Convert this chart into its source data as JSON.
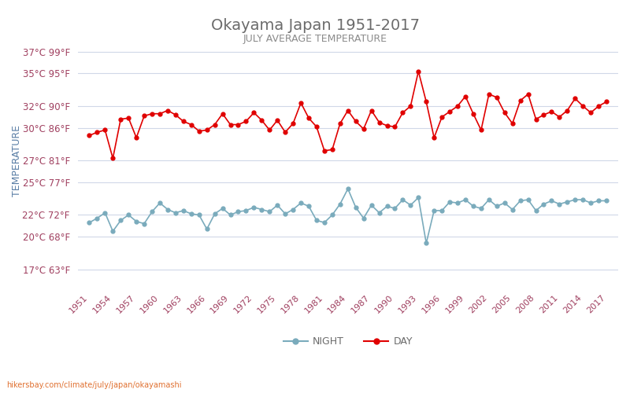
{
  "title": "Okayama Japan 1951-2017",
  "subtitle": "JULY AVERAGE TEMPERATURE",
  "ylabel": "TEMPERATURE",
  "footer": "hikersbay.com/climate/july/japan/okayamashi",
  "yticks_c": [
    17,
    20,
    22,
    25,
    27,
    30,
    32,
    35,
    37
  ],
  "yticks_f": [
    63,
    68,
    72,
    77,
    81,
    86,
    90,
    95,
    99
  ],
  "xticks": [
    1951,
    1954,
    1957,
    1960,
    1963,
    1966,
    1969,
    1972,
    1975,
    1978,
    1981,
    1984,
    1987,
    1990,
    1993,
    1996,
    1999,
    2002,
    2005,
    2008,
    2011,
    2014,
    2017
  ],
  "ylim": [
    15.5,
    38.5
  ],
  "day_color": "#e00000",
  "night_color": "#7aabbc",
  "title_color": "#6b6b6b",
  "subtitle_color": "#8b8b8b",
  "ylabel_color": "#5b7fa6",
  "tick_color": "#a04060",
  "grid_color": "#d0d8e8",
  "background_color": "#ffffff",
  "legend_night": "NIGHT",
  "legend_day": "DAY",
  "years": [
    1951,
    1952,
    1953,
    1954,
    1955,
    1956,
    1957,
    1958,
    1959,
    1960,
    1961,
    1962,
    1963,
    1964,
    1965,
    1966,
    1967,
    1968,
    1969,
    1970,
    1971,
    1972,
    1973,
    1974,
    1975,
    1976,
    1977,
    1978,
    1979,
    1980,
    1981,
    1982,
    1983,
    1984,
    1985,
    1986,
    1987,
    1988,
    1989,
    1990,
    1991,
    1992,
    1993,
    1994,
    1995,
    1996,
    1997,
    1998,
    1999,
    2000,
    2001,
    2002,
    2003,
    2004,
    2005,
    2006,
    2007,
    2008,
    2009,
    2010,
    2011,
    2012,
    2013,
    2014,
    2015,
    2016,
    2017
  ],
  "day_temps": [
    29.3,
    29.6,
    29.8,
    27.2,
    30.8,
    30.9,
    29.1,
    31.1,
    31.3,
    31.3,
    31.6,
    31.2,
    30.6,
    30.3,
    29.7,
    29.8,
    30.3,
    31.3,
    30.3,
    30.3,
    30.6,
    31.4,
    30.7,
    29.8,
    30.7,
    29.6,
    30.4,
    32.3,
    30.9,
    30.1,
    27.9,
    28.0,
    30.4,
    31.6,
    30.6,
    29.9,
    31.6,
    30.5,
    30.2,
    30.1,
    31.4,
    32.0,
    35.2,
    32.4,
    29.1,
    31.0,
    31.5,
    32.0,
    32.9,
    31.3,
    29.8,
    33.1,
    32.8,
    31.4,
    30.4,
    32.5,
    33.1,
    30.8,
    31.2,
    31.5,
    31.0,
    31.6,
    32.7,
    32.0,
    31.4,
    32.0,
    32.4
  ],
  "night_temps": [
    21.3,
    21.7,
    22.2,
    20.5,
    21.5,
    22.0,
    21.4,
    21.2,
    22.3,
    23.1,
    22.5,
    22.2,
    22.4,
    22.1,
    22.0,
    20.7,
    22.1,
    22.6,
    22.0,
    22.3,
    22.4,
    22.7,
    22.5,
    22.3,
    22.9,
    22.1,
    22.5,
    23.1,
    22.8,
    21.5,
    21.3,
    22.0,
    23.0,
    24.4,
    22.7,
    21.7,
    22.9,
    22.2,
    22.8,
    22.6,
    23.4,
    22.9,
    23.6,
    19.4,
    22.4,
    22.4,
    23.2,
    23.1,
    23.4,
    22.8,
    22.6,
    23.4,
    22.8,
    23.1,
    22.5,
    23.3,
    23.4,
    22.4,
    23.0,
    23.3,
    23.0,
    23.2,
    23.4,
    23.4,
    23.1,
    23.3,
    23.3
  ]
}
